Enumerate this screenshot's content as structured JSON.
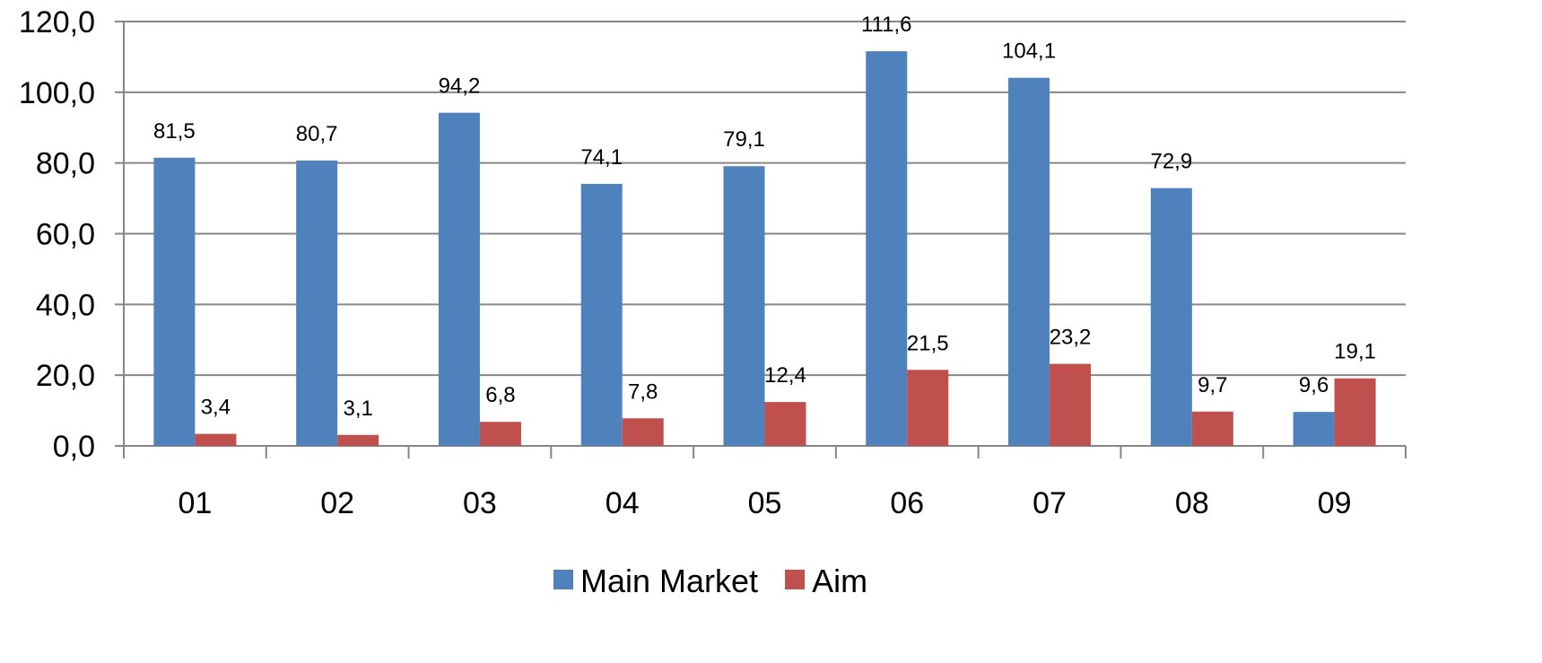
{
  "chart_data": {
    "type": "bar",
    "title": "",
    "xlabel": "",
    "ylabel": "",
    "categories": [
      "01",
      "02",
      "03",
      "04",
      "05",
      "06",
      "07",
      "08",
      "09"
    ],
    "series": [
      {
        "name": "Main Market",
        "color": "#4F81BD",
        "values": [
          81.5,
          80.7,
          94.2,
          74.1,
          79.1,
          111.6,
          104.1,
          72.9,
          9.6
        ],
        "value_labels": [
          "81,5",
          "80,7",
          "94,2",
          "74,1",
          "79,1",
          "111,6",
          "104,1",
          "72,9",
          "9,6"
        ]
      },
      {
        "name": "Aim",
        "color": "#C0504D",
        "values": [
          3.4,
          3.1,
          6.8,
          7.8,
          12.4,
          21.5,
          23.2,
          9.7,
          19.1
        ],
        "value_labels": [
          "3,4",
          "3,1",
          "6,8",
          "7,8",
          "12,4",
          "21,5",
          "23,2",
          "9,7",
          "19,1"
        ]
      }
    ],
    "ylim": [
      0,
      120
    ],
    "yticks": [
      0,
      20,
      40,
      60,
      80,
      100,
      120
    ],
    "ytick_labels": [
      "0,0",
      "20,0",
      "40,0",
      "60,0",
      "80,0",
      "100,0",
      "120,0"
    ],
    "grid": true,
    "legend_position": "bottom"
  }
}
